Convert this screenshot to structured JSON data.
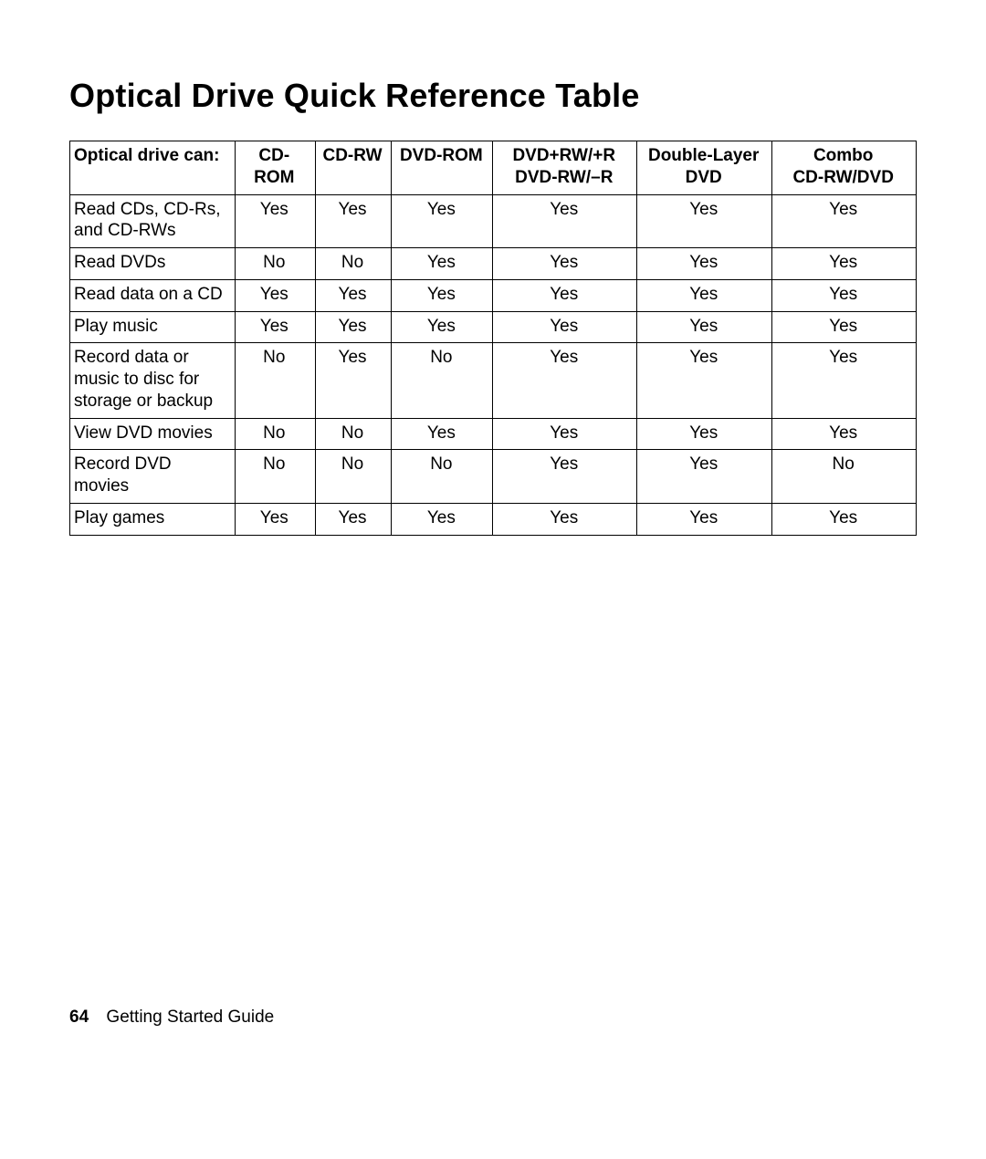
{
  "page": {
    "title": "Optical Drive Quick Reference Table",
    "page_number": "64",
    "footer_text": "Getting Started Guide"
  },
  "table": {
    "type": "table",
    "column_widths_pct": [
      19.5,
      9.5,
      9.0,
      12.0,
      17.0,
      16.0,
      17.0
    ],
    "header_fontsize_pt": 14,
    "body_fontsize_pt": 14,
    "border_color": "#000000",
    "background_color": "#ffffff",
    "columns": [
      {
        "label": "Optical drive can:",
        "align": "left"
      },
      {
        "label": "CD-ROM",
        "align": "center"
      },
      {
        "label": "CD-RW",
        "align": "center"
      },
      {
        "label": "DVD-ROM",
        "align": "center"
      },
      {
        "label": "DVD+RW/+R",
        "label2": "DVD-RW/–R",
        "align": "center"
      },
      {
        "label": "Double-Layer",
        "label2": "DVD",
        "align": "center"
      },
      {
        "label": "Combo",
        "label2": "CD-RW/DVD",
        "align": "center"
      }
    ],
    "rows": [
      {
        "label": "Read CDs, CD-Rs, and CD-RWs",
        "cells": [
          "Yes",
          "Yes",
          "Yes",
          "Yes",
          "Yes",
          "Yes"
        ]
      },
      {
        "label": "Read DVDs",
        "cells": [
          "No",
          "No",
          "Yes",
          "Yes",
          "Yes",
          "Yes"
        ]
      },
      {
        "label": "Read data on a CD",
        "cells": [
          "Yes",
          "Yes",
          "Yes",
          "Yes",
          "Yes",
          "Yes"
        ]
      },
      {
        "label": "Play music",
        "cells": [
          "Yes",
          "Yes",
          "Yes",
          "Yes",
          "Yes",
          "Yes"
        ]
      },
      {
        "label": "Record data or music to disc for storage or backup",
        "cells": [
          "No",
          "Yes",
          "No",
          "Yes",
          "Yes",
          "Yes"
        ]
      },
      {
        "label": "View DVD movies",
        "cells": [
          "No",
          "No",
          "Yes",
          "Yes",
          "Yes",
          "Yes"
        ]
      },
      {
        "label": "Record DVD movies",
        "cells": [
          "No",
          "No",
          "No",
          "Yes",
          "Yes",
          "No"
        ]
      },
      {
        "label": "Play games",
        "cells": [
          "Yes",
          "Yes",
          "Yes",
          "Yes",
          "Yes",
          "Yes"
        ]
      }
    ]
  }
}
